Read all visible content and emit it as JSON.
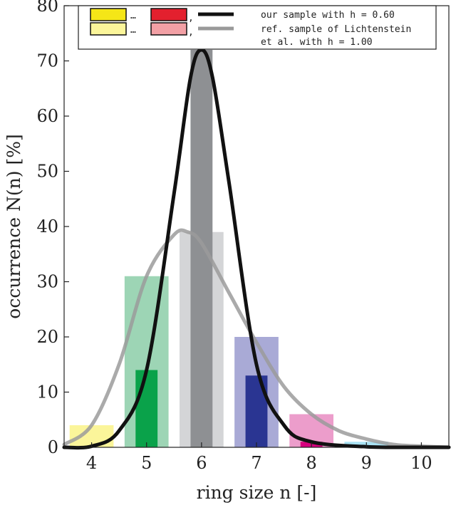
{
  "chart_data": {
    "type": "bar",
    "xlabel": "ring size n [-]",
    "ylabel": "occurrence N(n) [%]",
    "categories": [
      "4",
      "5",
      "6",
      "7",
      "8",
      "9",
      "10"
    ],
    "xlim": [
      3.5,
      10.5
    ],
    "ylim": [
      0,
      80
    ],
    "y_ticks": [
      0,
      10,
      20,
      30,
      40,
      50,
      60,
      70,
      80
    ],
    "grid": false,
    "legend_position": "top",
    "legend": {
      "sample_text": "our sample with h = 0.60",
      "ref_text_line1": "ref. sample of Lichtenstein",
      "ref_text_line2": "et al. with h = 1.00",
      "ellipsis": "…",
      "comma": ","
    },
    "series": [
      {
        "name": "ref. sample of Lichtenstein et al. with h = 1.00",
        "style": "wide-faded",
        "x": [
          4,
          5,
          6,
          7,
          8,
          9,
          10
        ],
        "values": [
          4,
          31,
          39,
          20,
          6,
          1,
          0
        ],
        "colors": [
          "#fbf59a",
          "#9dd5b5",
          "#d4d5d7",
          "#a9aad6",
          "#ec9dcb",
          "#a9e2f3",
          "#ffffff"
        ]
      },
      {
        "name": "our sample with h = 0.60",
        "style": "narrow-solid",
        "x": [
          4,
          5,
          6,
          7,
          8,
          9,
          10
        ],
        "values": [
          0,
          14,
          72,
          13,
          1,
          0,
          0
        ],
        "colors": [
          "#f5e617",
          "#0aa24a",
          "#8e9093",
          "#2a3592",
          "#d5007d",
          "#2fb4e3",
          "#000000"
        ]
      }
    ],
    "curves": [
      {
        "name": "our sample with h = 0.60",
        "color": "#111111",
        "points": [
          [
            3.5,
            0
          ],
          [
            4,
            0.2
          ],
          [
            4.5,
            3
          ],
          [
            5,
            14
          ],
          [
            5.5,
            46
          ],
          [
            5.8,
            67
          ],
          [
            6,
            72
          ],
          [
            6.2,
            67
          ],
          [
            6.5,
            48
          ],
          [
            7,
            15
          ],
          [
            7.5,
            4
          ],
          [
            8,
            1
          ],
          [
            9,
            0.1
          ],
          [
            10,
            0
          ],
          [
            10.5,
            0
          ]
        ]
      },
      {
        "name": "ref. sample of Lichtenstein et al. with h = 1.00",
        "color": "#9b9b9b",
        "points": [
          [
            3.5,
            0.5
          ],
          [
            4,
            4
          ],
          [
            4.5,
            15
          ],
          [
            5,
            31
          ],
          [
            5.5,
            38.5
          ],
          [
            5.75,
            39
          ],
          [
            6,
            37
          ],
          [
            6.5,
            28
          ],
          [
            7,
            19
          ],
          [
            7.5,
            11
          ],
          [
            8,
            6
          ],
          [
            8.5,
            3
          ],
          [
            9,
            1.5
          ],
          [
            9.5,
            0.5
          ],
          [
            10,
            0.2
          ],
          [
            10.5,
            0
          ]
        ]
      }
    ],
    "legend_colors": {
      "sample_first": "#f5e617",
      "sample_last": "#e3202e",
      "ref_first": "#fbf59a",
      "ref_last": "#f2a0a5"
    }
  }
}
